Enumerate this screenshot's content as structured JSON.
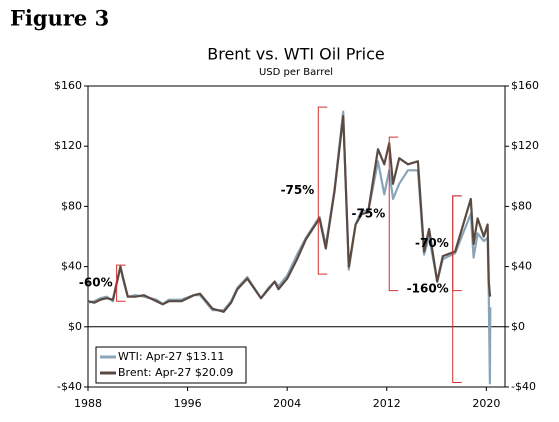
{
  "heading": "Figure 3",
  "chart_data": {
    "type": "line",
    "title": "Brent vs. WTI Oil Price",
    "subtitle": "USD per Barrel",
    "xlim": [
      1988,
      2021.5
    ],
    "xticks": [
      1988,
      1996,
      2004,
      2012,
      2020
    ],
    "ylim": [
      -40,
      160
    ],
    "yticks": [
      {
        "value": -40,
        "label": "-$40"
      },
      {
        "value": 0,
        "label": "$0"
      },
      {
        "value": 40,
        "label": "$40"
      },
      {
        "value": 80,
        "label": "$80"
      },
      {
        "value": 120,
        "label": "$120"
      },
      {
        "value": 160,
        "label": "$160"
      }
    ],
    "y2lim": [
      -40,
      160
    ],
    "y2ticks": [
      {
        "value": -40,
        "label": "-$40"
      },
      {
        "value": 0,
        "label": "$0"
      },
      {
        "value": 40,
        "label": "$40"
      },
      {
        "value": 80,
        "label": "$80"
      },
      {
        "value": 120,
        "label": "$120"
      },
      {
        "value": 160,
        "label": "$160"
      }
    ],
    "grid": false,
    "legend": "lower left",
    "x": [
      1988,
      1988.5,
      1989,
      1989.5,
      1990,
      1990.6,
      1990.8,
      1991.2,
      1991.8,
      1992.5,
      1993.5,
      1994,
      1994.5,
      1995.5,
      1996.5,
      1997,
      1998,
      1998.9,
      1999.5,
      2000,
      2000.8,
      2001.9,
      2002.5,
      2003,
      2003.3,
      2004,
      2004.8,
      2005.5,
      2006.6,
      2007.1,
      2007.8,
      2008.5,
      2008.95,
      2009.5,
      2010,
      2010.5,
      2011.3,
      2011.8,
      2012.2,
      2012.5,
      2013,
      2013.7,
      2014.5,
      2015,
      2015.4,
      2016.05,
      2016.5,
      2017.5,
      2018.75,
      2018.98,
      2019.3,
      2019.8,
      2020.1,
      2020.2,
      2020.29,
      2020.32
    ],
    "series": [
      {
        "name": "WTI: Apr-27 $13.11",
        "color": "#8aa4b8",
        "values": [
          16,
          17,
          19,
          20,
          17,
          40,
          32,
          20,
          21,
          20,
          18,
          15,
          18,
          18,
          21,
          21,
          11,
          11,
          17,
          26,
          33,
          19,
          26,
          30,
          27,
          34,
          48,
          59,
          73,
          54,
          91,
          143,
          38,
          68,
          78,
          76,
          110,
          88,
          104,
          85,
          95,
          104,
          104,
          48,
          60,
          30,
          45,
          49,
          75,
          46,
          62,
          57,
          59,
          20,
          -37.63,
          13.11
        ]
      },
      {
        "name": "Brent: Apr-27 $20.09",
        "color": "#5a4a42",
        "values": [
          17,
          16,
          18,
          19,
          18,
          40,
          33,
          20,
          20,
          21,
          17,
          15,
          17,
          17,
          21,
          22,
          12,
          10,
          16,
          25,
          32,
          19,
          25,
          30,
          25,
          32,
          45,
          58,
          72,
          52,
          90,
          140,
          40,
          68,
          75,
          76,
          118,
          108,
          122,
          95,
          112,
          108,
          110,
          50,
          65,
          30,
          47,
          50,
          85,
          55,
          72,
          60,
          68,
          30,
          21,
          20.09
        ]
      }
    ],
    "annotations": [
      {
        "text": "-60%",
        "x": 1990.3,
        "high": 41,
        "low": 17
      },
      {
        "text": "-75%",
        "x": 2006.5,
        "high": 146,
        "low": 35
      },
      {
        "text": "-75%",
        "x": 2012.2,
        "high": 126,
        "low": 24
      },
      {
        "text": "-70%",
        "x": 2017.3,
        "high": 87,
        "low": 24
      },
      {
        "text": "-160%",
        "x": 2017.3,
        "high": 87,
        "low": -37
      }
    ]
  }
}
